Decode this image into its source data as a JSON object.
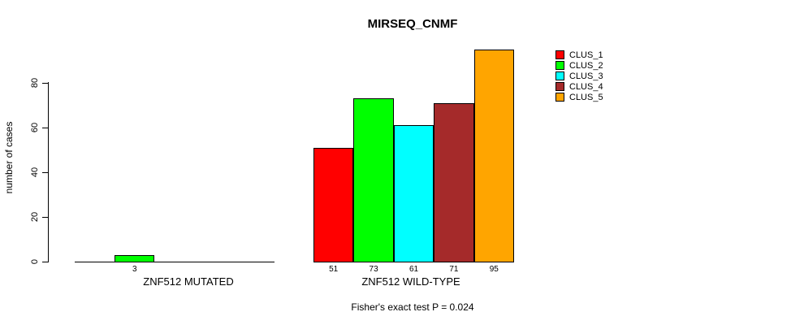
{
  "chart_data": {
    "type": "bar",
    "title": "MIRSEQ_CNMF",
    "ylabel": "number of cases",
    "yticks": [
      0,
      20,
      40,
      60,
      80
    ],
    "ylim": [
      0,
      95
    ],
    "grid": false,
    "legend_position": "top-right",
    "categories": [
      "ZNF512 MUTATED",
      "ZNF512 WILD-TYPE"
    ],
    "series": [
      {
        "name": "CLUS_1",
        "color": "#FF0000",
        "values": [
          0,
          51
        ]
      },
      {
        "name": "CLUS_2",
        "color": "#00FF00",
        "values": [
          3,
          73
        ]
      },
      {
        "name": "CLUS_3",
        "color": "#00FFFF",
        "values": [
          0,
          61
        ]
      },
      {
        "name": "CLUS_4",
        "color": "#A52A2A",
        "values": [
          0,
          71
        ]
      },
      {
        "name": "CLUS_5",
        "color": "#FFA500",
        "values": [
          0,
          95
        ]
      }
    ],
    "bar_value_labels": {
      "ZNF512 MUTATED": [
        null,
        "3",
        null,
        null,
        null
      ],
      "ZNF512 WILD-TYPE": [
        "51",
        "73",
        "61",
        "71",
        "95"
      ]
    },
    "footnote": "Fisher's exact test P = 0.024",
    "axis_color": "#000000",
    "background_color": "#FFFFFF"
  }
}
